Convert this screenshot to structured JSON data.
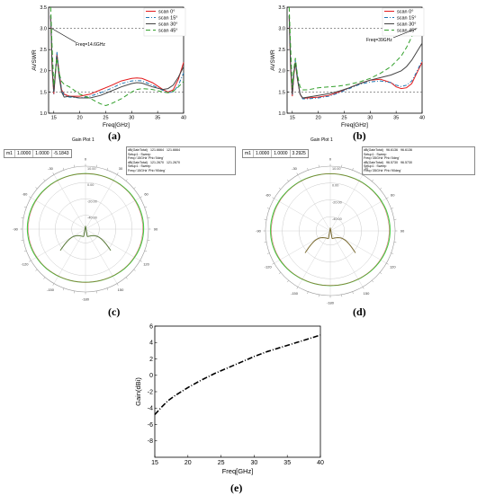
{
  "labels": {
    "a": "(a)",
    "b": "(b)",
    "c": "(c)",
    "d": "(d)",
    "e": "(e)"
  },
  "chart_data": [
    {
      "id": "a",
      "type": "line",
      "xlabel": "Freq[GHz]",
      "ylabel": "AVSWR",
      "xlim": [
        14,
        40
      ],
      "ylim": [
        1.0,
        3.5
      ],
      "xticks": [
        15,
        20,
        25,
        30,
        35,
        40
      ],
      "yticks": [
        1.0,
        1.5,
        2.0,
        2.5,
        3.0,
        3.5
      ],
      "annotation": "Freq=14.6GHz",
      "annotation_x": 14.6,
      "reference_lines": [
        3.0,
        1.5
      ],
      "legend_position": "top-right",
      "series": [
        {
          "name": "scan 0°",
          "color": "#e31a1c",
          "dash": "",
          "x": [
            14.4,
            14.7,
            15,
            15.3,
            15.6,
            16,
            16.5,
            17,
            18,
            20,
            22,
            24,
            26,
            28,
            30,
            31,
            32,
            34,
            36,
            37,
            38,
            39,
            40
          ],
          "y": [
            3.3,
            2.0,
            1.45,
            1.9,
            2.4,
            2.0,
            1.55,
            1.45,
            1.4,
            1.4,
            1.45,
            1.55,
            1.65,
            1.76,
            1.82,
            1.83,
            1.82,
            1.72,
            1.56,
            1.5,
            1.55,
            1.8,
            2.2
          ]
        },
        {
          "name": "scan 15°",
          "color": "#1f78b4",
          "dash": "4,2,1,2",
          "x": [
            14.4,
            14.7,
            15,
            15.3,
            15.6,
            16,
            16.5,
            17,
            18,
            20,
            22,
            24,
            26,
            28,
            30,
            31,
            32,
            34,
            36,
            37,
            38,
            39,
            40
          ],
          "y": [
            3.3,
            2.05,
            1.45,
            1.95,
            2.45,
            2.0,
            1.55,
            1.42,
            1.38,
            1.36,
            1.4,
            1.48,
            1.58,
            1.7,
            1.76,
            1.77,
            1.76,
            1.66,
            1.54,
            1.49,
            1.5,
            1.66,
            1.95
          ]
        },
        {
          "name": "scan 30°",
          "color": "#444444",
          "dash": "",
          "x": [
            14.4,
            14.7,
            15,
            15.3,
            15.6,
            16,
            16.5,
            17,
            18,
            20,
            22,
            24,
            26,
            28,
            30,
            31,
            32,
            34,
            36,
            37,
            38,
            39,
            40
          ],
          "y": [
            3.3,
            2.1,
            1.5,
            1.95,
            2.35,
            1.9,
            1.5,
            1.38,
            1.4,
            1.36,
            1.36,
            1.42,
            1.52,
            1.62,
            1.7,
            1.72,
            1.71,
            1.62,
            1.56,
            1.58,
            1.66,
            1.85,
            2.1
          ]
        },
        {
          "name": "scan 45°",
          "color": "#33a02c",
          "dash": "5,3",
          "x": [
            14.4,
            14.7,
            15,
            15.3,
            15.6,
            16,
            16.5,
            17,
            18,
            20,
            22,
            24,
            25,
            26,
            28,
            30,
            31,
            32,
            34,
            36,
            37,
            38,
            39,
            40
          ],
          "y": [
            3.5,
            2.5,
            1.65,
            2.0,
            2.3,
            1.95,
            1.75,
            1.68,
            1.62,
            1.45,
            1.35,
            1.22,
            1.18,
            1.22,
            1.34,
            1.5,
            1.56,
            1.58,
            1.56,
            1.5,
            1.48,
            1.52,
            1.62,
            1.75
          ]
        }
      ]
    },
    {
      "id": "b",
      "type": "line",
      "xlabel": "Freq[GHz]",
      "ylabel": "AVSWR",
      "xlim": [
        14,
        40
      ],
      "ylim": [
        1.0,
        3.5
      ],
      "xticks": [
        15,
        20,
        25,
        30,
        35,
        40
      ],
      "yticks": [
        1.0,
        1.5,
        2.0,
        2.5,
        3.0,
        3.5
      ],
      "annotation": "Freq=39GHz",
      "annotation_x": 39,
      "reference_lines": [
        3.0,
        1.5
      ],
      "legend_position": "top-right",
      "series": [
        {
          "name": "scan 0°",
          "color": "#e31a1c",
          "dash": "",
          "x": [
            14.4,
            14.7,
            15,
            15.3,
            15.6,
            16,
            16.5,
            17,
            18,
            20,
            22,
            24,
            26,
            28,
            30,
            32,
            34,
            35,
            36,
            37,
            38,
            39,
            40
          ],
          "y": [
            3.3,
            2.0,
            1.4,
            1.9,
            2.2,
            1.8,
            1.45,
            1.35,
            1.36,
            1.38,
            1.42,
            1.5,
            1.6,
            1.7,
            1.78,
            1.8,
            1.72,
            1.62,
            1.58,
            1.6,
            1.7,
            1.95,
            2.2
          ]
        },
        {
          "name": "scan 15°",
          "color": "#1f78b4",
          "dash": "4,2,1,2",
          "x": [
            14.4,
            14.7,
            15,
            15.3,
            15.6,
            16,
            16.5,
            17,
            18,
            20,
            22,
            24,
            26,
            28,
            30,
            32,
            34,
            35,
            36,
            37,
            38,
            39,
            40
          ],
          "y": [
            3.3,
            2.05,
            1.42,
            1.95,
            2.25,
            1.85,
            1.45,
            1.34,
            1.34,
            1.36,
            1.4,
            1.48,
            1.58,
            1.68,
            1.74,
            1.76,
            1.72,
            1.66,
            1.63,
            1.66,
            1.76,
            1.98,
            2.25
          ]
        },
        {
          "name": "scan 30°",
          "color": "#444444",
          "dash": "",
          "x": [
            14.4,
            14.7,
            15,
            15.3,
            15.6,
            16,
            16.5,
            17,
            18,
            20,
            22,
            24,
            26,
            28,
            30,
            32,
            34,
            36,
            37,
            38,
            39,
            40
          ],
          "y": [
            3.3,
            2.1,
            1.45,
            1.95,
            2.2,
            1.8,
            1.45,
            1.36,
            1.38,
            1.42,
            1.46,
            1.52,
            1.6,
            1.7,
            1.78,
            1.84,
            1.9,
            2.0,
            2.1,
            2.25,
            2.45,
            2.65
          ]
        },
        {
          "name": "scan 45°",
          "color": "#33a02c",
          "dash": "5,3",
          "x": [
            14.4,
            14.7,
            15,
            15.3,
            15.6,
            16,
            16.5,
            17,
            18,
            20,
            22,
            24,
            26,
            28,
            30,
            32,
            34,
            36,
            37,
            38,
            39,
            40
          ],
          "y": [
            3.5,
            2.5,
            1.6,
            2.05,
            2.3,
            1.9,
            1.62,
            1.55,
            1.55,
            1.6,
            1.62,
            1.64,
            1.68,
            1.74,
            1.82,
            1.94,
            2.1,
            2.35,
            2.55,
            2.8,
            3.1,
            3.3
          ]
        }
      ]
    },
    {
      "id": "c",
      "type": "polar",
      "title": "Gain Plot 1",
      "marker": {
        "name": "m1",
        "theta": "1.0000",
        "phi": "1.0000",
        "value": "-5.1843"
      },
      "rings": [
        "-40.00",
        "-20.00",
        "0.00",
        "10.00"
      ],
      "angles": [
        "0",
        "30",
        "60",
        "90",
        "120",
        "150",
        "-180",
        "-150",
        "-120",
        "-90",
        "-60",
        "-30"
      ],
      "info": [
        {
          "trace": "dB(GainTotal)",
          "setup": "Setup1 : Sweep",
          "freq": "Freq='15GHz' Phi='0deg'",
          "v1": "121.6664",
          "v2": "121.6664"
        },
        {
          "trace": "dB(GainTotal)",
          "setup": "Setup1 : Sweep",
          "freq": "Freq='15GHz' Phi='90deg'",
          "v1": "121.2670",
          "v2": "121.2670"
        }
      ],
      "series": [
        {
          "name": "dB(GainTotal) Phi='0deg'",
          "color": "#cc3333"
        },
        {
          "name": "dB(GainTotal) Phi='90deg'",
          "color": "#44cc44"
        }
      ]
    },
    {
      "id": "d",
      "type": "polar",
      "title": "Gain Plot 1",
      "marker": {
        "name": "m1",
        "theta": "1.0000",
        "phi": "1.0000",
        "value": "3.2925"
      },
      "rings": [
        "-40.00",
        "-20.00",
        "0.00",
        "10.00"
      ],
      "angles": [
        "0",
        "30",
        "60",
        "90",
        "120",
        "150",
        "-180",
        "-150",
        "-120",
        "-90",
        "-60",
        "-30"
      ],
      "info": [
        {
          "trace": "dB(GainTotal)",
          "setup": "Setup1 : Sweep",
          "freq": "Freq='35GHz' Phi='0deg'",
          "v1": "96.6136",
          "v2": "96.6136"
        },
        {
          "trace": "dB(GainTotal)",
          "setup": "Setup1 : Sweep",
          "freq": "Freq='35GHz' Phi='90deg'",
          "v1": "96.5730",
          "v2": "96.5730"
        }
      ],
      "series": [
        {
          "name": "dB(GainTotal) Phi='0deg'",
          "color": "#cc3333"
        },
        {
          "name": "dB(GainTotal) Phi='90deg'",
          "color": "#44cc44"
        }
      ]
    },
    {
      "id": "e",
      "type": "line",
      "xlabel": "Freq[GHz]",
      "ylabel": "Gain(dBi)",
      "xlim": [
        15,
        40
      ],
      "ylim": [
        -10,
        6
      ],
      "xticks": [
        15,
        20,
        25,
        30,
        35,
        40
      ],
      "yticks": [
        -8,
        -6,
        -4,
        -2,
        0,
        2,
        4,
        6
      ],
      "series": [
        {
          "name": "",
          "color": "#000000",
          "dash": "6,2,1,2",
          "x": [
            15,
            16,
            17,
            18,
            19,
            20,
            22,
            24,
            26,
            28,
            30,
            32,
            34,
            36,
            38,
            40
          ],
          "y": [
            -4.8,
            -3.9,
            -3.1,
            -2.5,
            -2.0,
            -1.5,
            -0.6,
            0.2,
            0.9,
            1.6,
            2.3,
            2.9,
            3.4,
            3.9,
            4.4,
            4.9
          ]
        }
      ]
    }
  ]
}
